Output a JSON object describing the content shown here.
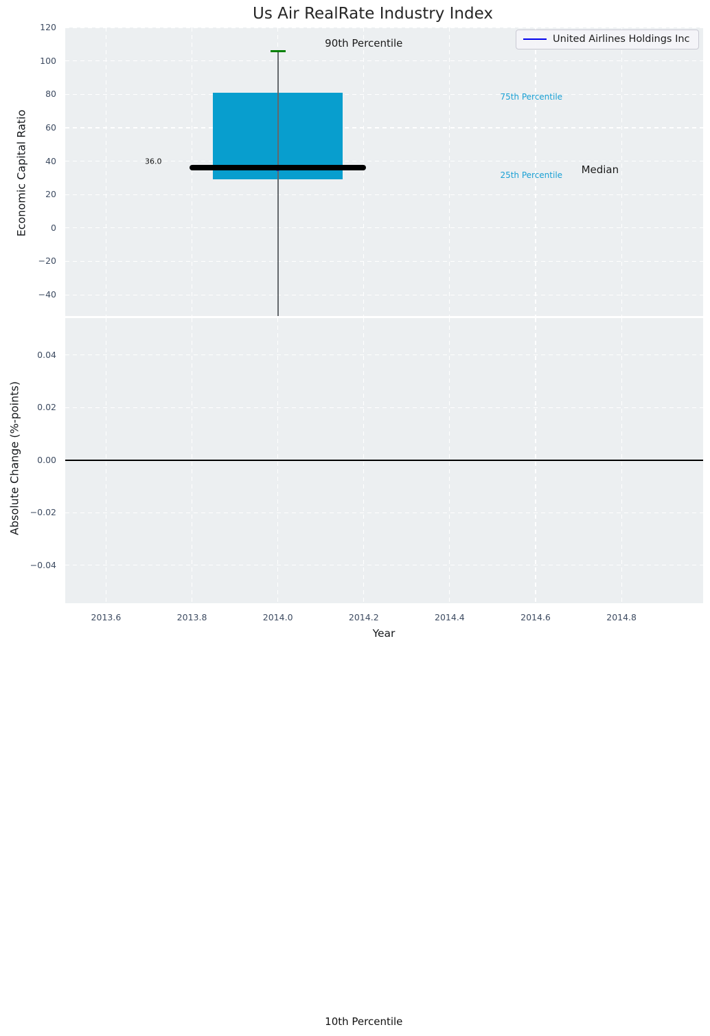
{
  "colors": {
    "figure_bg": "#FFFFFF",
    "axes_bg": "#ECEFF1",
    "grid": "#FFFFFF",
    "box_fill": "#089ECE",
    "percentile_label": "#1AA0D4",
    "whisker": "#63676B",
    "cap_green": "#008000",
    "median_line": "#000000",
    "marker_blue": "#2222CC",
    "legend_line": "#0000EE",
    "tick_label": "#3C4A60",
    "axis_label": "#14171A",
    "title": "#262626",
    "zero_line": "#000000"
  },
  "chart_data": [
    {
      "type": "boxplot",
      "title": "Us Air RealRate Industry Index",
      "ylabel": "Economic Capital Ratio",
      "xlim": [
        2013.505,
        2014.99
      ],
      "ylim": [
        -52.7,
        120
      ],
      "y_ticks": [
        120,
        100,
        80,
        60,
        40,
        20,
        0,
        -20,
        -40
      ],
      "x_ticks": [
        2013.6,
        2013.8,
        2014.0,
        2014.2,
        2014.4,
        2014.6,
        2014.8
      ],
      "grid": true,
      "legend": [
        "United Airlines Holdings Inc"
      ],
      "legend_position": "upper right",
      "box": {
        "x": 2014.0,
        "median": 36.0,
        "q1": 29.0,
        "q3": 81.0,
        "p90": 106.0,
        "p10": -475.0,
        "p10_offscreen": true,
        "box_half_width": 0.151,
        "median_half_width": 0.205,
        "cap_half_width": 0.0175
      },
      "median_label": "36.0",
      "series": [
        {
          "name": "United Airlines Holdings Inc",
          "x": [
            2014.0
          ],
          "y": [
            36.0
          ]
        }
      ],
      "annotations": [
        {
          "label": "90th Percentile",
          "x": 2014.2,
          "y": 110.5,
          "color": "#1A1A1A",
          "size": 15
        },
        {
          "label": "75th Percentile",
          "x": 2014.59,
          "y": 78.5,
          "color": "#1AA0D4",
          "size": 12
        },
        {
          "label": "25th Percentile",
          "x": 2014.59,
          "y": 31.5,
          "color": "#1AA0D4",
          "size": 12
        },
        {
          "label": "Median",
          "x": 2014.75,
          "y": 35.0,
          "color": "#1A1A1A",
          "size": 15
        },
        {
          "label": "36.0",
          "x": 2013.71,
          "y": 40.0,
          "color": "#111111",
          "size": 11
        },
        {
          "label": "10th Percentile",
          "x": 2014.2,
          "y": -475.0,
          "color": "#111111",
          "size": 15
        }
      ]
    },
    {
      "type": "line",
      "ylabel": "Absolute Change (%-points)",
      "xlabel": "Year",
      "xlim": [
        2013.505,
        2014.99
      ],
      "ylim": [
        -0.0545,
        0.0541
      ],
      "y_ticks": [
        0.04,
        0.02,
        0.0,
        -0.02,
        -0.04
      ],
      "x_ticks": [
        2013.6,
        2013.8,
        2014.0,
        2014.2,
        2014.4,
        2014.6,
        2014.8
      ],
      "grid": true,
      "zero_line": 0.0,
      "series": []
    }
  ]
}
